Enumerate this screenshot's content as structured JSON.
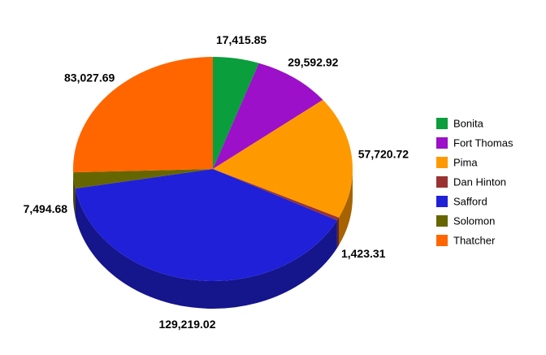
{
  "chart_data": {
    "type": "pie",
    "categories": [
      "Bonita",
      "Fort Thomas",
      "Pima",
      "Dan Hinton",
      "Safford",
      "Solomon",
      "Thatcher"
    ],
    "values": [
      17415.85,
      29592.92,
      57720.72,
      1423.31,
      129219.02,
      7494.68,
      83027.69
    ],
    "value_labels": [
      "17,415.85",
      "29,592.92",
      "57,720.72",
      "1,423.31",
      "129,219.02",
      "7,494.68",
      "83,027.69"
    ],
    "colors": [
      "#0a9e3c",
      "#9b10c8",
      "#ff9900",
      "#993333",
      "#2020d8",
      "#666600",
      "#ff6600"
    ],
    "legend": "right"
  }
}
